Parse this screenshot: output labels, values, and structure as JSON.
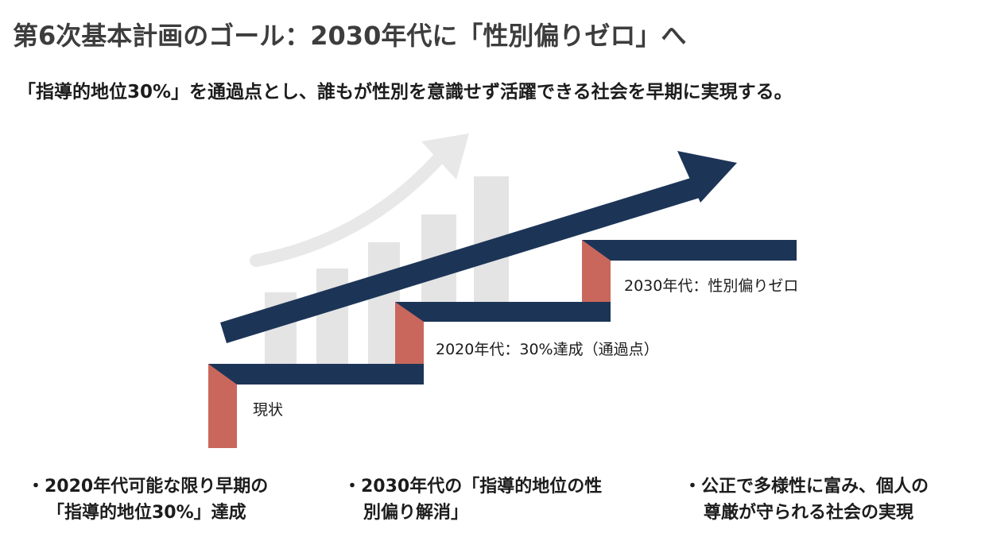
{
  "title": "第6次基本計画のゴール：2030年代に「性別偏りゼロ」へ",
  "subtitle": "「指導的地位30%」を通過点とし、誰もが性別を意識せず活躍できる社会を早期に実現する。",
  "stages": [
    {
      "label": "現状"
    },
    {
      "label": "2020年代：30%達成（通過点）"
    },
    {
      "label": "2030年代：性別偏りゼロ"
    }
  ],
  "goals": [
    {
      "line1": "・2020年代可能な限り早期の",
      "line2": "「指導的地位30%」達成"
    },
    {
      "line1": "・2030年代の「指導的地位の性",
      "line2": "別偏り解消」"
    },
    {
      "line1": "・公正で多様性に富み、個人の",
      "line2": "尊厳が守られる社会の実現"
    }
  ],
  "colors": {
    "navy": "#1c3557",
    "salmon": "#c9675c",
    "grey_bars": "#e3e3e3",
    "title": "#3d3d3d"
  }
}
